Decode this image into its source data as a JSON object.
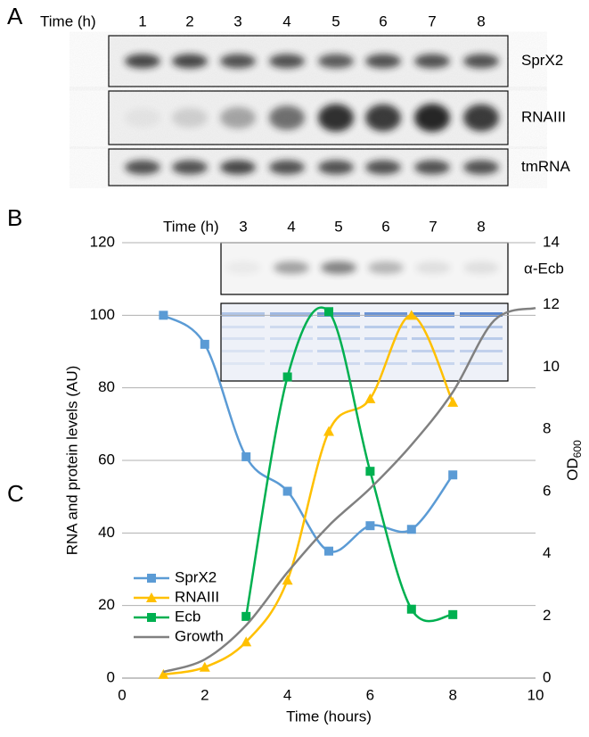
{
  "panels": {
    "a": {
      "label": "A",
      "time_label": "Time (h)",
      "lanes": [
        "1",
        "2",
        "3",
        "4",
        "5",
        "6",
        "7",
        "8"
      ],
      "blots": [
        "SprX2",
        "RNAIII",
        "tmRNA"
      ]
    },
    "b": {
      "label": "B",
      "time_label": "Time (h)",
      "lanes": [
        "3",
        "4",
        "5",
        "6",
        "7",
        "8"
      ],
      "blots": [
        "α-Ecb"
      ]
    },
    "c": {
      "label": "C"
    }
  },
  "chart_data": {
    "type": "line",
    "x_label": "Time (hours)",
    "y_label": "RNA and protein levels (AU)",
    "y2_label": {
      "text": "OD",
      "subscript": "600"
    },
    "xlim": [
      0,
      10
    ],
    "xticks": [
      0,
      2,
      4,
      6,
      8,
      10
    ],
    "ylim": [
      0,
      120
    ],
    "yticks": [
      0,
      20,
      40,
      60,
      80,
      100,
      120
    ],
    "y2lim": [
      0,
      14
    ],
    "y2ticks": [
      0,
      2,
      4,
      6,
      8,
      10,
      12,
      14
    ],
    "grid": true,
    "legend": "left",
    "series": [
      {
        "name": "SprX2",
        "color": "#5b9bd5",
        "marker": "square",
        "x": [
          1,
          2,
          3,
          4,
          5,
          6,
          7,
          8
        ],
        "values": [
          100,
          92,
          61,
          51.5,
          35,
          42,
          41,
          56
        ]
      },
      {
        "name": "RNAIII",
        "color": "#ffc000",
        "marker": "triangle",
        "x": [
          1,
          2,
          3,
          4,
          5,
          6,
          7,
          8
        ],
        "values": [
          1,
          3,
          10,
          27,
          68,
          77,
          100,
          76
        ]
      },
      {
        "name": "Ecb",
        "color": "#00b050",
        "marker": "square",
        "x": [
          3,
          4,
          5,
          6,
          7,
          8
        ],
        "values": [
          17,
          83,
          101,
          57,
          19,
          17.5
        ]
      },
      {
        "name": "Growth",
        "color": "#808080",
        "axis": "y2",
        "x": [
          1,
          2,
          3,
          4,
          5,
          6,
          7,
          8,
          9,
          10
        ],
        "values": [
          0.2,
          0.6,
          1.7,
          3.4,
          4.9,
          6.1,
          7.5,
          9.2,
          11.5,
          11.9
        ]
      }
    ]
  }
}
